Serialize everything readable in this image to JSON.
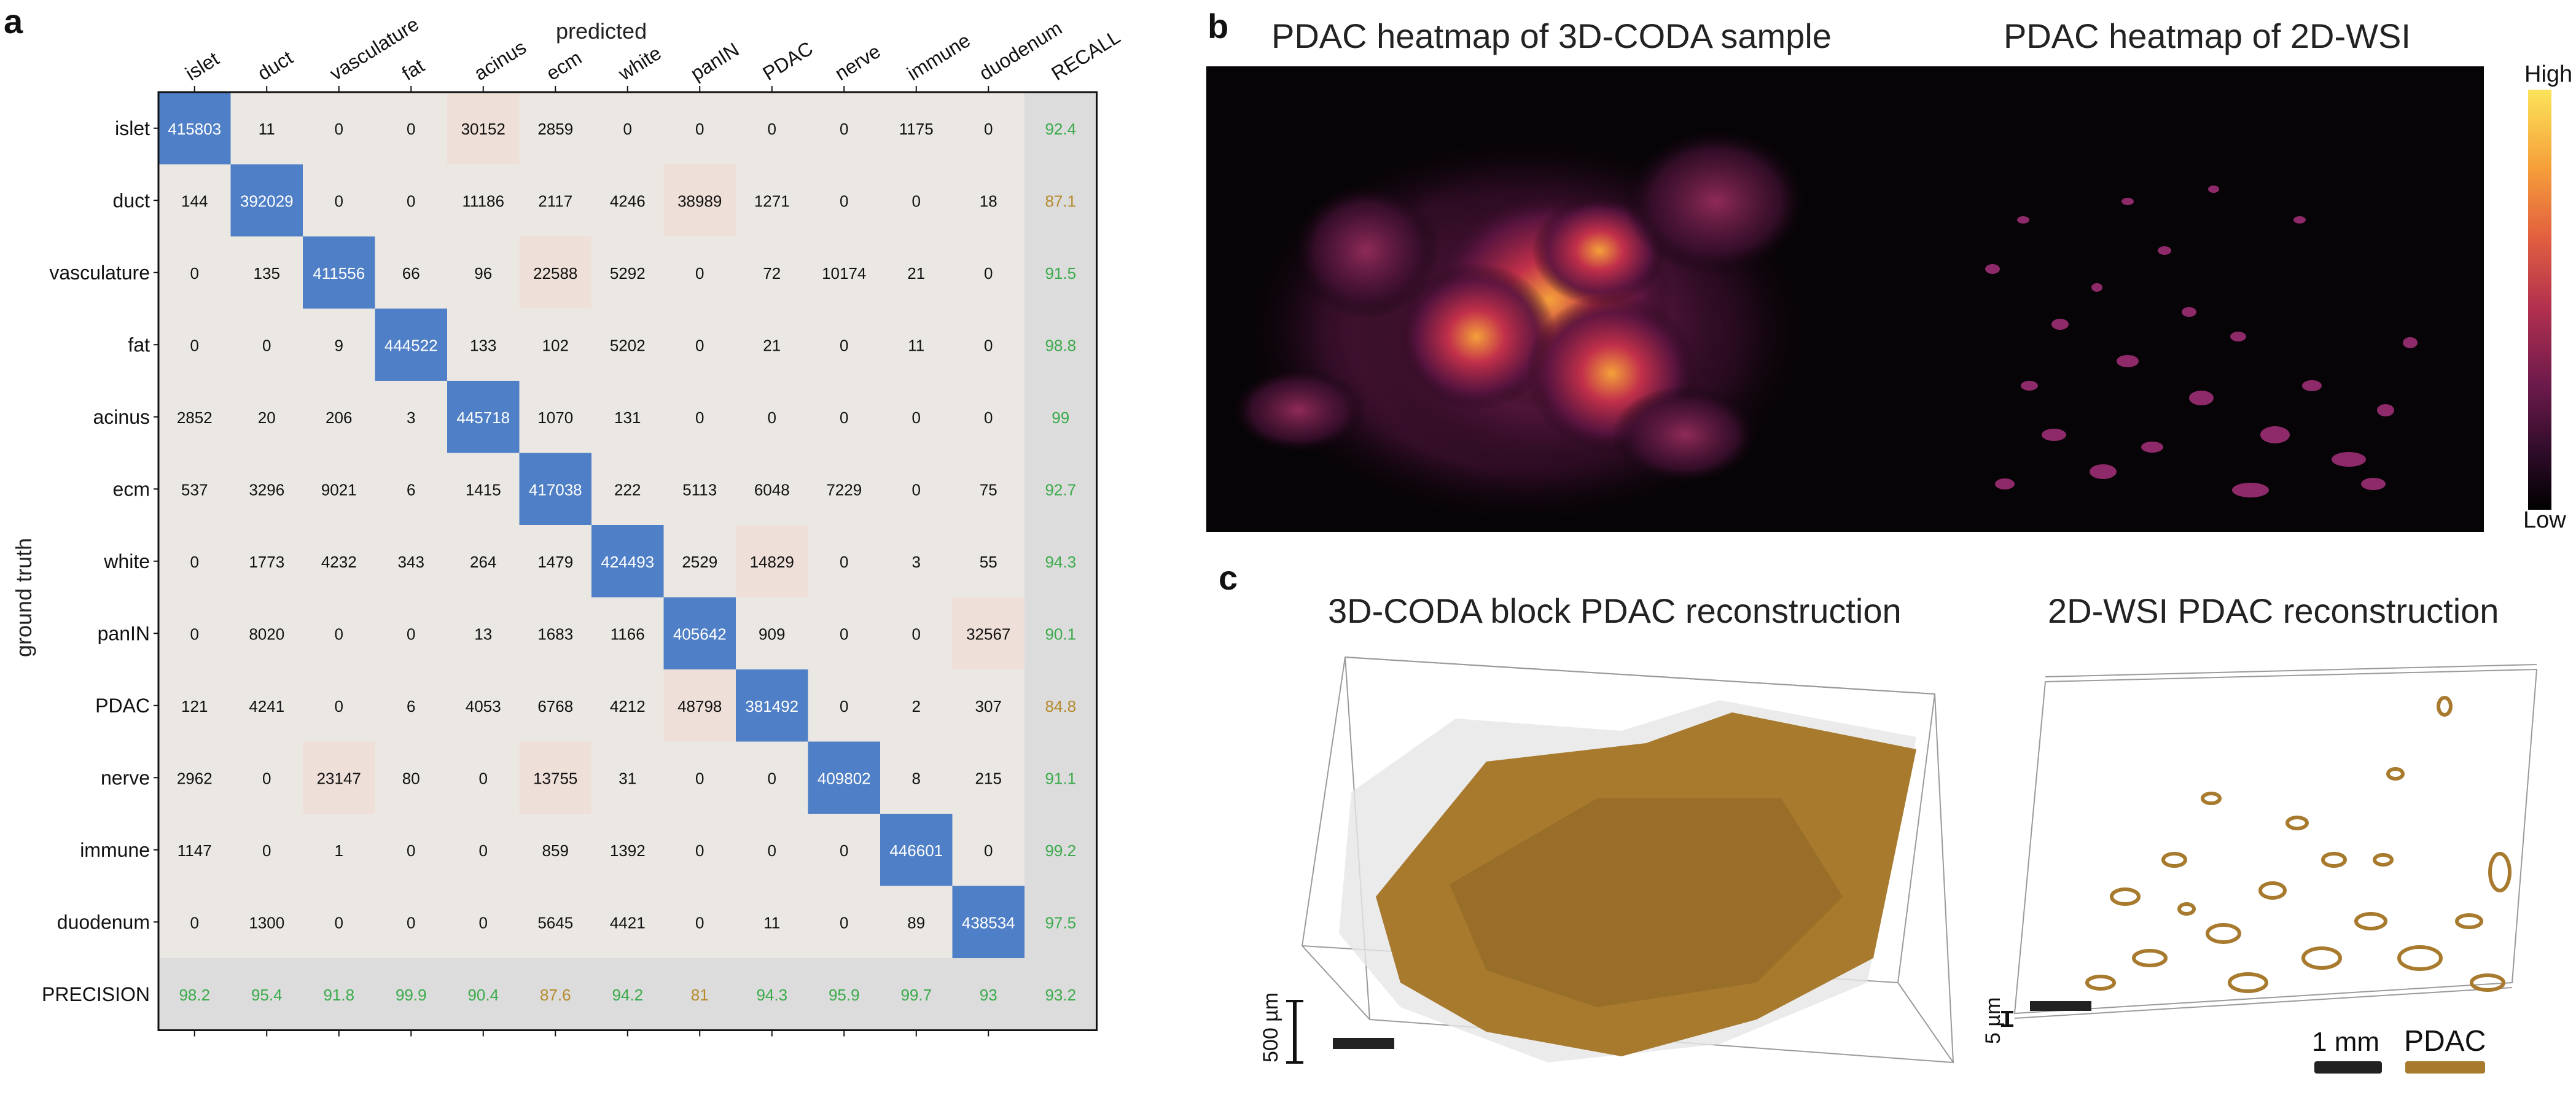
{
  "panels": {
    "a": "a",
    "b": "b",
    "c": "c"
  },
  "chart_data": {
    "type": "heatmap",
    "title": "",
    "xlabel": "predicted",
    "ylabel": "ground truth",
    "classes": [
      "islet",
      "duct",
      "vasculature",
      "fat",
      "acinus",
      "ecm",
      "white",
      "panIN",
      "PDAC",
      "nerve",
      "immune",
      "duodenum"
    ],
    "recall_label": "RECALL",
    "precision_label": "PRECISION",
    "matrix": [
      [
        415803,
        11,
        0,
        0,
        30152,
        2859,
        0,
        0,
        0,
        0,
        1175,
        0
      ],
      [
        144,
        392029,
        0,
        0,
        11186,
        2117,
        4246,
        38989,
        1271,
        0,
        0,
        18
      ],
      [
        0,
        135,
        411556,
        66,
        96,
        22588,
        5292,
        0,
        72,
        10174,
        21,
        0
      ],
      [
        0,
        0,
        9,
        444522,
        133,
        102,
        5202,
        0,
        21,
        0,
        11,
        0
      ],
      [
        2852,
        20,
        206,
        3,
        445718,
        1070,
        131,
        0,
        0,
        0,
        0,
        0
      ],
      [
        537,
        3296,
        9021,
        6,
        1415,
        417038,
        222,
        5113,
        6048,
        7229,
        0,
        75
      ],
      [
        0,
        1773,
        4232,
        343,
        264,
        1479,
        424493,
        2529,
        14829,
        0,
        3,
        55
      ],
      [
        0,
        8020,
        0,
        0,
        13,
        1683,
        1166,
        405642,
        909,
        0,
        0,
        32567
      ],
      [
        121,
        4241,
        0,
        6,
        4053,
        6768,
        4212,
        48798,
        381492,
        0,
        2,
        307
      ],
      [
        2962,
        0,
        23147,
        80,
        0,
        13755,
        31,
        0,
        0,
        409802,
        8,
        215
      ],
      [
        1147,
        0,
        1,
        0,
        0,
        859,
        1392,
        0,
        0,
        0,
        446601,
        0
      ],
      [
        0,
        1300,
        0,
        0,
        0,
        5645,
        4421,
        0,
        11,
        0,
        89,
        438534
      ]
    ],
    "recall": [
      "92.4",
      "87.1",
      "91.5",
      "98.8",
      "99",
      "92.7",
      "94.3",
      "90.1",
      "84.8",
      "91.1",
      "99.2",
      "97.5"
    ],
    "precision": [
      "98.2",
      "95.4",
      "91.8",
      "99.9",
      "90.4",
      "87.6",
      "94.2",
      "81",
      "94.3",
      "95.9",
      "99.7",
      "93"
    ],
    "overall": "93.2",
    "colors": {
      "diagonal": "#4f7fc6",
      "highlight": "#eedfd8",
      "cell": "#ebe8e3",
      "margin": "#dcdcdc",
      "good": "#3aaa4a",
      "warn": "#b58a2c"
    }
  },
  "panel_b": {
    "title_left": "PDAC heatmap of 3D-CODA sample",
    "title_right": "PDAC heatmap of 2D-WSI",
    "colorbar_high": "High",
    "colorbar_low": "Low"
  },
  "panel_c": {
    "title_left": "3D-CODA block PDAC reconstruction",
    "title_right": "2D-WSI PDAC reconstruction",
    "scale_left": "500 µm",
    "scale_right_vertical": "5 µm",
    "scale_bar_label": "1 mm",
    "legend_label": "PDAC",
    "legend_color": "#a87b2f"
  }
}
